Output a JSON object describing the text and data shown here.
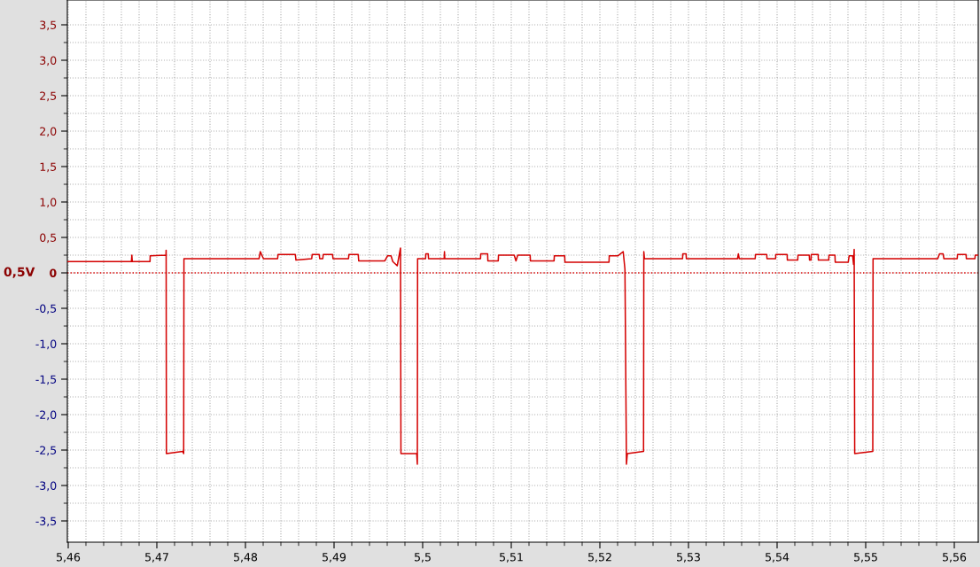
{
  "chart_data": {
    "type": "line",
    "ylabel": "0,5V",
    "xlim": [
      5.4599,
      5.5627
    ],
    "ylim": [
      -3.8,
      3.85
    ],
    "xticks": [
      {
        "value": 5.46,
        "label": "5,46"
      },
      {
        "value": 5.47,
        "label": "5,47"
      },
      {
        "value": 5.48,
        "label": "5,48"
      },
      {
        "value": 5.49,
        "label": "5,49"
      },
      {
        "value": 5.5,
        "label": "5,5"
      },
      {
        "value": 5.51,
        "label": "5,51"
      },
      {
        "value": 5.52,
        "label": "5,52"
      },
      {
        "value": 5.53,
        "label": "5,53"
      },
      {
        "value": 5.54,
        "label": "5,54"
      },
      {
        "value": 5.55,
        "label": "5,55"
      },
      {
        "value": 5.56,
        "label": "5,56"
      }
    ],
    "yticks": [
      {
        "value": -3.5,
        "label": "-3,5"
      },
      {
        "value": -3.0,
        "label": "-3,0"
      },
      {
        "value": -2.5,
        "label": "-2,5"
      },
      {
        "value": -2.0,
        "label": "-2,0"
      },
      {
        "value": -1.5,
        "label": "-1,5"
      },
      {
        "value": -1.0,
        "label": "-1,0"
      },
      {
        "value": -0.5,
        "label": "-0,5"
      },
      0,
      {
        "value": 0.5,
        "label": "0,5"
      },
      {
        "value": 1.0,
        "label": "1,0"
      },
      {
        "value": 1.5,
        "label": "1,5"
      },
      {
        "value": 2.0,
        "label": "2,0"
      },
      {
        "value": 2.5,
        "label": "2,5"
      },
      {
        "value": 3.0,
        "label": "3,0"
      },
      {
        "value": 3.5,
        "label": "3,5"
      }
    ],
    "grid": true,
    "marker": "none",
    "line_style": "solid",
    "ref_lines": [
      {
        "axis": "y",
        "value": 0,
        "color": "#e00000",
        "line_style": "dotted"
      }
    ],
    "series": [
      {
        "color": "#d40000",
        "x": [
          5.4599,
          5.46713,
          5.46718,
          5.46723,
          5.46923,
          5.46925,
          5.47103,
          5.47105,
          5.47108,
          5.47293,
          5.47303,
          5.47306,
          5.48063,
          5.48153,
          5.48168,
          5.48203,
          5.48363,
          5.48368,
          5.48563,
          5.4857,
          5.48748,
          5.48753,
          5.48833,
          5.48838,
          5.48873,
          5.48878,
          5.48983,
          5.48988,
          5.49163,
          5.49168,
          5.49273,
          5.49278,
          5.49573,
          5.49603,
          5.49643,
          5.49663,
          5.49713,
          5.4975,
          5.49755,
          5.49933,
          5.4994,
          5.49943,
          5.50033,
          5.50036,
          5.50063,
          5.50066,
          5.50243,
          5.50246,
          5.5025,
          5.50653,
          5.50656,
          5.50733,
          5.50736,
          5.50853,
          5.50856,
          5.51033,
          5.51053,
          5.51073,
          5.51213,
          5.51216,
          5.51483,
          5.51486,
          5.51603,
          5.51606,
          5.52103,
          5.52106,
          5.52203,
          5.52263,
          5.52283,
          5.523,
          5.5231,
          5.52493,
          5.52496,
          5.52503,
          5.52933,
          5.52936,
          5.52973,
          5.52976,
          5.53553,
          5.53563,
          5.53573,
          5.53753,
          5.53756,
          5.53883,
          5.53886,
          5.53983,
          5.53986,
          5.54113,
          5.54116,
          5.54233,
          5.54236,
          5.54363,
          5.54366,
          5.54383,
          5.54386,
          5.54463,
          5.54466,
          5.54583,
          5.54586,
          5.54653,
          5.54656,
          5.54803,
          5.54813,
          5.54853,
          5.54863,
          5.5487,
          5.54876,
          5.5508,
          5.55083,
          5.55813,
          5.55833,
          5.55873,
          5.55883,
          5.56033,
          5.56036,
          5.56133,
          5.56136,
          5.56233,
          5.56236,
          5.5627
        ],
        "values": [
          0.16,
          0.16,
          0.25,
          0.16,
          0.16,
          0.24,
          0.25,
          0.32,
          -2.55,
          -2.52,
          -2.55,
          0.2,
          0.2,
          0.2,
          0.3,
          0.2,
          0.2,
          0.26,
          0.26,
          0.18,
          0.2,
          0.26,
          0.26,
          0.2,
          0.2,
          0.26,
          0.26,
          0.2,
          0.2,
          0.26,
          0.26,
          0.17,
          0.17,
          0.24,
          0.24,
          0.16,
          0.1,
          0.35,
          -2.55,
          -2.55,
          -2.7,
          0.2,
          0.2,
          0.27,
          0.27,
          0.2,
          0.2,
          0.3,
          0.2,
          0.2,
          0.27,
          0.27,
          0.17,
          0.17,
          0.25,
          0.25,
          0.17,
          0.25,
          0.25,
          0.17,
          0.17,
          0.24,
          0.24,
          0.15,
          0.15,
          0.24,
          0.24,
          0.3,
          0.05,
          -2.7,
          -2.55,
          -2.52,
          0.3,
          0.2,
          0.2,
          0.27,
          0.27,
          0.2,
          0.2,
          0.27,
          0.2,
          0.2,
          0.26,
          0.26,
          0.2,
          0.2,
          0.26,
          0.26,
          0.18,
          0.18,
          0.25,
          0.25,
          0.18,
          0.18,
          0.26,
          0.26,
          0.18,
          0.18,
          0.25,
          0.25,
          0.15,
          0.15,
          0.24,
          0.24,
          0.12,
          0.33,
          -2.55,
          -2.52,
          0.2,
          0.2,
          0.27,
          0.27,
          0.2,
          0.2,
          0.26,
          0.26,
          0.2,
          0.2,
          0.25,
          0.25
        ]
      }
    ]
  }
}
